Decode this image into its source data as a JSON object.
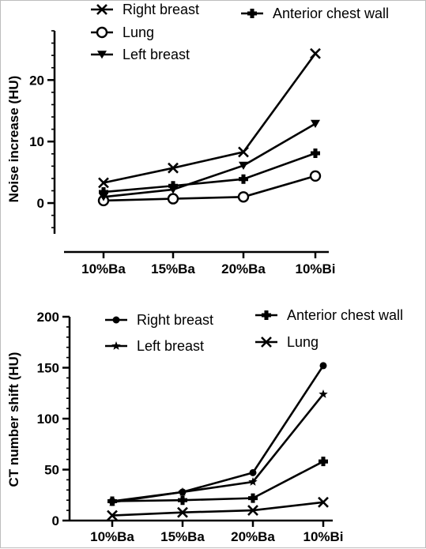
{
  "chart_data": [
    {
      "type": "line",
      "categories": [
        "10%Ba",
        "15%Ba",
        "20%Ba",
        "10%Bi"
      ],
      "ylabel": "Noise increase (HU)",
      "xlabel": "",
      "title": "",
      "ylim": [
        -5,
        28
      ],
      "yticks": [
        0,
        10,
        20
      ],
      "series": [
        {
          "name": "Right breast",
          "marker": "x",
          "values": [
            3.3,
            5.7,
            8.3,
            24.3
          ]
        },
        {
          "name": "Lung",
          "marker": "open-circle",
          "values": [
            0.4,
            0.7,
            1.0,
            4.4
          ]
        },
        {
          "name": "Left breast",
          "marker": "triangle-down",
          "values": [
            1.0,
            2.2,
            6.1,
            12.9
          ]
        },
        {
          "name": "Anterior chest wall",
          "marker": "plus-filled",
          "values": [
            1.8,
            2.8,
            3.9,
            8.1
          ]
        }
      ],
      "legend_placement": "top"
    },
    {
      "type": "line",
      "categories": [
        "10%Ba",
        "15%Ba",
        "20%Ba",
        "10%Bi"
      ],
      "ylabel": "CT number shift (HU)",
      "xlabel": "",
      "title": "",
      "ylim": [
        0,
        200
      ],
      "yticks": [
        0,
        50,
        100,
        150,
        200
      ],
      "series": [
        {
          "name": "Right breast",
          "marker": "filled-circle",
          "values": [
            19,
            28,
            47,
            152
          ]
        },
        {
          "name": "Left breast",
          "marker": "star",
          "values": [
            18,
            28,
            38,
            124
          ]
        },
        {
          "name": "Anterior chest wall",
          "marker": "plus-filled",
          "values": [
            19,
            20,
            22,
            58
          ]
        },
        {
          "name": "Lung",
          "marker": "x",
          "values": [
            5,
            8,
            10,
            18
          ]
        }
      ],
      "legend_placement": "top"
    }
  ]
}
